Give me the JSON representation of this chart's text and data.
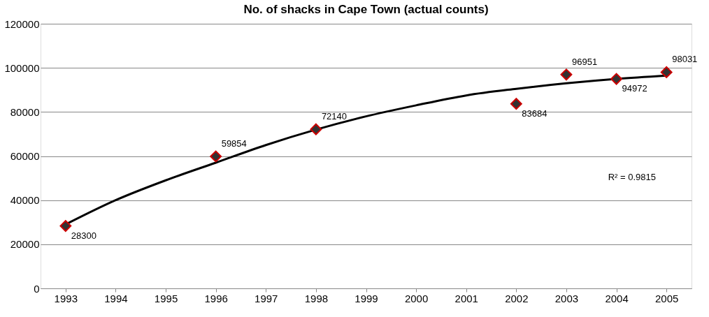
{
  "chart_data": {
    "type": "scatter",
    "title": "No. of shacks in Cape Town (actual counts)",
    "categories": [
      "1993",
      "1994",
      "1995",
      "1996",
      "1997",
      "1998",
      "1999",
      "2000",
      "2001",
      "2002",
      "2003",
      "2004",
      "2005"
    ],
    "series": [
      {
        "type": "line",
        "color": "#000000",
        "line_style": "solid",
        "values": [
          29000,
          40000,
          49000,
          57000,
          65000,
          72000,
          78000,
          83000,
          87500,
          90500,
          93000,
          95000,
          96500
        ]
      },
      {
        "color": "#333333",
        "marker": "diamond",
        "values": [
          28300,
          null,
          null,
          59854,
          null,
          72140,
          null,
          null,
          null,
          83684,
          96951,
          94972,
          98031
        ],
        "value_labels": [
          "28300",
          null,
          null,
          "59854",
          null,
          "72140",
          null,
          null,
          null,
          "83684",
          "96951",
          "94972",
          "98031"
        ]
      }
    ],
    "ylim": [
      0,
      120000
    ],
    "yticks": [
      0,
      20000,
      40000,
      60000,
      80000,
      100000,
      120000
    ],
    "grid": "y",
    "annotations": [
      "R² = 0.9815"
    ]
  }
}
